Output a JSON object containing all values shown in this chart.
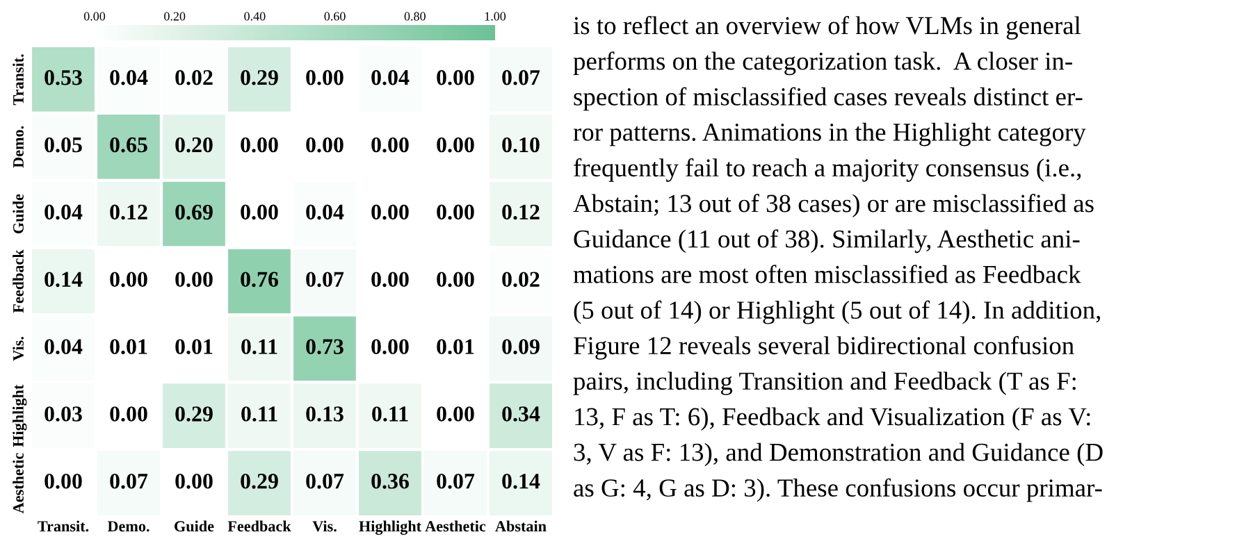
{
  "chart_data": {
    "type": "heatmap",
    "categories": [
      "Transit.",
      "Demo.",
      "Guide",
      "Feedback",
      "Vis.",
      "Highlight",
      "Aesthetic",
      "Abstain"
    ],
    "y_categories": [
      "Transit.",
      "Demo.",
      "Guide",
      "Feedback",
      "Vis.",
      "Highlight",
      "Aesthetic"
    ],
    "cells": [
      [
        0.53,
        0.04,
        0.02,
        0.29,
        0.0,
        0.04,
        0.0,
        0.07
      ],
      [
        0.05,
        0.65,
        0.2,
        0.0,
        0.0,
        0.0,
        0.0,
        0.1
      ],
      [
        0.04,
        0.12,
        0.69,
        0.0,
        0.04,
        0.0,
        0.0,
        0.12
      ],
      [
        0.14,
        0.0,
        0.0,
        0.76,
        0.07,
        0.0,
        0.0,
        0.02
      ],
      [
        0.04,
        0.01,
        0.01,
        0.11,
        0.73,
        0.0,
        0.01,
        0.09
      ],
      [
        0.03,
        0.0,
        0.29,
        0.11,
        0.13,
        0.11,
        0.0,
        0.34
      ],
      [
        0.0,
        0.07,
        0.0,
        0.29,
        0.07,
        0.36,
        0.07,
        0.14
      ]
    ],
    "cell_labels": [
      [
        "0.53",
        "0.04",
        "0.02",
        "0.29",
        "0.00",
        "0.04",
        "0.00",
        "0.07"
      ],
      [
        "0.05",
        "0.65",
        "0.20",
        "0.00",
        "0.00",
        "0.00",
        "0.00",
        "0.10"
      ],
      [
        "0.04",
        "0.12",
        "0.69",
        "0.00",
        "0.04",
        "0.00",
        "0.00",
        "0.12"
      ],
      [
        "0.14",
        "0.00",
        "0.00",
        "0.76",
        "0.07",
        "0.00",
        "0.00",
        "0.02"
      ],
      [
        "0.04",
        "0.01",
        "0.01",
        "0.11",
        "0.73",
        "0.00",
        "0.01",
        "0.09"
      ],
      [
        "0.03",
        "0.00",
        "0.29",
        "0.11",
        "0.13",
        "0.11",
        "0.00",
        "0.34"
      ],
      [
        "0.00",
        "0.07",
        "0.00",
        "0.29",
        "0.07",
        "0.36",
        "0.07",
        "0.14"
      ]
    ],
    "clim": [
      0,
      1
    ],
    "cticks": [
      {
        "value": 0,
        "label": "0.00"
      },
      {
        "value": 0.2,
        "label": "0.20"
      },
      {
        "value": 0.4,
        "label": "0.40"
      },
      {
        "value": 0.6,
        "label": "0.60"
      },
      {
        "value": 0.8,
        "label": "0.80"
      },
      {
        "value": 1,
        "label": "1.00"
      }
    ],
    "color": "#6cc296",
    "annotations": [
      "is to reflect an overview of how VLMs in general",
      "performs on the categorization task.  A closer in-",
      "spection of misclassified cases reveals distinct er-",
      "ror patterns. Animations in the Highlight category",
      "frequently fail to reach a majority consensus (i.e.,",
      "Abstain; 13 out of 38 cases) or are misclassified as",
      "Guidance (11 out of 38). Similarly, Aesthetic ani-",
      "mations are most often misclassified as Feedback",
      "(5 out of 14) or Highlight (5 out of 14). In addition,",
      "Figure 12 reveals several bidirectional confusion",
      "pairs, including Transition and Feedback (T as F:",
      "13, F as T: 6), Feedback and Visualization (F as V:",
      "3, V as F: 13), and Demonstration and Guidance (D",
      "as G: 4, G as D: 3). These confusions occur primar-"
    ]
  }
}
